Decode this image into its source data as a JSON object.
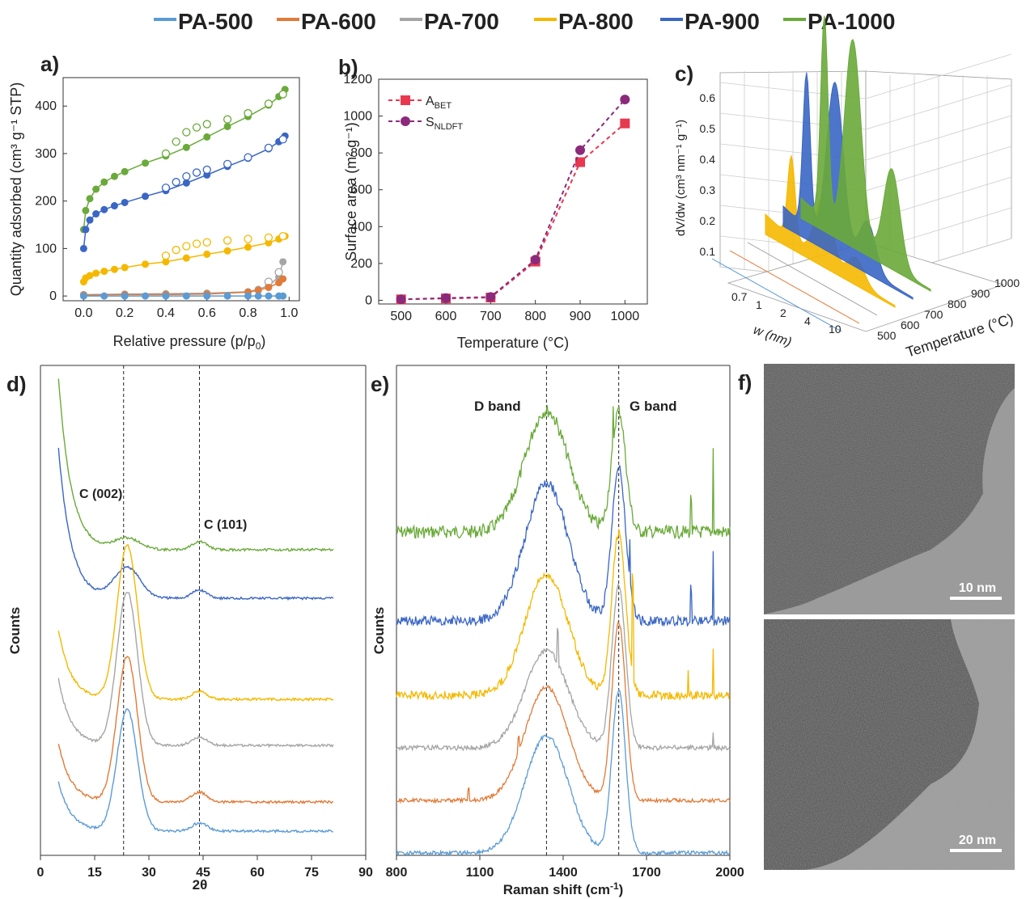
{
  "legend": [
    {
      "name": "PA-500",
      "color": "#5b9bd5"
    },
    {
      "name": "PA-600",
      "color": "#e07b39"
    },
    {
      "name": "PA-700",
      "color": "#a5a5a5",
      "text_color": "#44546a"
    },
    {
      "name": "PA-800",
      "color": "#f5b800"
    },
    {
      "name": "PA-900",
      "color": "#3a66c4"
    },
    {
      "name": "PA-1000",
      "color": "#6aaa3a"
    }
  ],
  "chart_data": [
    {
      "panel": "a)",
      "type": "scatter",
      "xlabel": "Relative pressure (p/p",
      "xlabel_sub": "0",
      "xlabel_end": ")",
      "ylabel": "Quantity adsorbed (cm³ g⁻¹ STP)",
      "xlim": [
        -0.1,
        1.05
      ],
      "ylim": [
        -10,
        460
      ],
      "xticks": [
        "0.0",
        "0.2",
        "0.4",
        "0.6",
        "0.8",
        "1.0"
      ],
      "yticks": [
        "0",
        "100",
        "200",
        "300",
        "400"
      ],
      "series": [
        {
          "name": "PA-1000",
          "color": "#6aaa3a",
          "ads_x": [
            0.0,
            0.01,
            0.03,
            0.06,
            0.1,
            0.15,
            0.2,
            0.3,
            0.4,
            0.5,
            0.6,
            0.7,
            0.8,
            0.9,
            0.95,
            0.98
          ],
          "ads_y": [
            140,
            180,
            205,
            225,
            240,
            252,
            262,
            280,
            295,
            313,
            335,
            357,
            378,
            402,
            420,
            435
          ],
          "des_x": [
            0.4,
            0.45,
            0.5,
            0.55,
            0.6,
            0.7,
            0.8,
            0.9,
            0.97
          ],
          "des_y": [
            300,
            325,
            345,
            355,
            362,
            372,
            385,
            405,
            425
          ]
        },
        {
          "name": "PA-900",
          "color": "#3a66c4",
          "ads_x": [
            0.0,
            0.01,
            0.03,
            0.06,
            0.1,
            0.15,
            0.2,
            0.3,
            0.4,
            0.5,
            0.6,
            0.7,
            0.8,
            0.9,
            0.95,
            0.98
          ],
          "ads_y": [
            100,
            140,
            160,
            173,
            182,
            190,
            197,
            210,
            222,
            238,
            255,
            273,
            290,
            310,
            325,
            337
          ],
          "des_x": [
            0.4,
            0.45,
            0.5,
            0.55,
            0.6,
            0.7,
            0.8,
            0.9,
            0.97
          ],
          "des_y": [
            228,
            240,
            252,
            260,
            266,
            278,
            292,
            312,
            330
          ]
        },
        {
          "name": "PA-800",
          "color": "#f5b800",
          "ads_x": [
            0.0,
            0.01,
            0.03,
            0.06,
            0.1,
            0.15,
            0.2,
            0.3,
            0.4,
            0.5,
            0.6,
            0.7,
            0.8,
            0.9,
            0.95,
            0.98
          ],
          "ads_y": [
            30,
            38,
            43,
            48,
            52,
            56,
            60,
            67,
            72,
            80,
            88,
            95,
            103,
            112,
            120,
            126
          ],
          "des_x": [
            0.4,
            0.45,
            0.5,
            0.55,
            0.6,
            0.7,
            0.8,
            0.9,
            0.97
          ],
          "des_y": [
            85,
            97,
            105,
            110,
            113,
            117,
            120,
            123,
            126
          ]
        },
        {
          "name": "PA-700",
          "color": "#a5a5a5",
          "ads_x": [
            0.0,
            0.2,
            0.4,
            0.6,
            0.8,
            0.85,
            0.9,
            0.95,
            0.97
          ],
          "ads_y": [
            3,
            4,
            5,
            6,
            9,
            14,
            22,
            40,
            72
          ],
          "des_x": [
            0.9,
            0.95
          ],
          "des_y": [
            30,
            50
          ]
        },
        {
          "name": "PA-600",
          "color": "#e07b39",
          "ads_x": [
            0.0,
            0.2,
            0.4,
            0.6,
            0.8,
            0.85,
            0.9,
            0.95,
            0.97
          ],
          "ads_y": [
            2,
            3,
            3,
            4,
            8,
            12,
            18,
            28,
            36
          ],
          "des_x": [],
          "des_y": []
        },
        {
          "name": "PA-500",
          "color": "#5b9bd5",
          "ads_x": [
            0.0,
            0.1,
            0.2,
            0.3,
            0.4,
            0.5,
            0.6,
            0.7,
            0.8,
            0.85,
            0.9,
            0.95,
            0.97
          ],
          "ads_y": [
            0,
            0,
            0,
            0,
            0,
            0,
            0,
            0,
            0,
            0,
            0,
            0,
            0
          ],
          "des_x": [],
          "des_y": []
        }
      ]
    },
    {
      "panel": "b)",
      "type": "line",
      "xlabel": "Temperature (°C)",
      "ylabel": "Surface area (m² g⁻¹)",
      "xlim": [
        450,
        1050
      ],
      "ylim": [
        -20,
        1200
      ],
      "xticks": [
        "500",
        "600",
        "700",
        "800",
        "900",
        "1000"
      ],
      "yticks": [
        "0",
        "200",
        "400",
        "600",
        "800",
        "1000",
        "1200"
      ],
      "x": [
        500,
        600,
        700,
        800,
        900,
        1000
      ],
      "series": [
        {
          "name": "A",
          "sub": "BET",
          "color": "#e8384f",
          "marker": "square",
          "values": [
            5,
            10,
            15,
            210,
            750,
            960
          ]
        },
        {
          "name": "S",
          "sub": "NLDFT",
          "color": "#8b2a7a",
          "marker": "circle",
          "values": [
            5,
            12,
            18,
            220,
            815,
            1090
          ]
        }
      ]
    },
    {
      "panel": "c)",
      "type": "area",
      "ylabel": "dV/dw (cm³ nm⁻¹ g⁻¹)",
      "xlabel": "w (nm)",
      "zlabel": "Temperature (°C)",
      "zticks": [
        "0.1",
        "0.2",
        "0.3",
        "0.4",
        "0.5",
        "0.6"
      ],
      "wticks": [
        "0.7",
        "1",
        "2",
        "4",
        "10"
      ],
      "tticks": [
        "500",
        "600",
        "700",
        "800",
        "900",
        "1000"
      ]
    },
    {
      "panel": "d)",
      "type": "line",
      "xlabel": "2θ",
      "ylabel": "Counts",
      "xlim": [
        0,
        90
      ],
      "xticks": [
        "0",
        "15",
        "30",
        "45",
        "60",
        "75",
        "90"
      ],
      "annotations": [
        {
          "text": "C (002)",
          "x": 23
        },
        {
          "text": "C (101)",
          "x": 44
        }
      ],
      "ref_lines": [
        23,
        44
      ]
    },
    {
      "panel": "e)",
      "type": "line",
      "xlabel": "Raman shift  (cm",
      "xlabel_sup": "-1",
      "xlabel_end": ")",
      "ylabel": "Counts",
      "xlim": [
        800,
        2000
      ],
      "xticks": [
        "800",
        "1100",
        "1400",
        "1700",
        "2000"
      ],
      "annotations": [
        {
          "text": "D band",
          "x": 1340
        },
        {
          "text": "G band",
          "x": 1600
        }
      ],
      "ref_lines": [
        1340,
        1600
      ]
    },
    {
      "panel": "f)",
      "type": "image",
      "scale_bars": [
        "10 nm",
        "20 nm"
      ]
    }
  ]
}
